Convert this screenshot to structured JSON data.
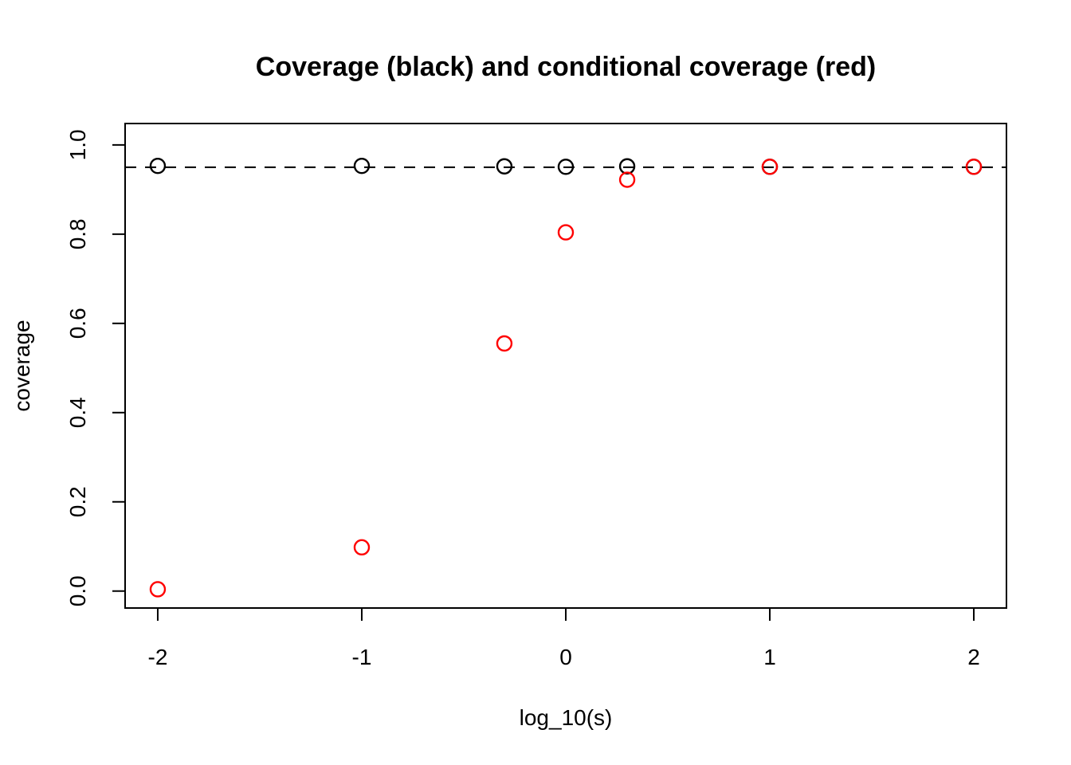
{
  "page": {
    "background": "#ffffff"
  },
  "chart_data": {
    "type": "scatter",
    "title": "Coverage (black) and conditional coverage (red)",
    "xlabel": "log_10(s)",
    "ylabel": "coverage",
    "x_ticks": [
      -2,
      -1,
      0,
      1,
      2
    ],
    "x_tick_labels": [
      "-2",
      "-1",
      "0",
      "1",
      "2"
    ],
    "y_ticks": [
      0.0,
      0.2,
      0.4,
      0.6,
      0.8,
      1.0
    ],
    "y_tick_labels": [
      "0.0",
      "0.2",
      "0.4",
      "0.6",
      "0.8",
      "1.0"
    ],
    "xlim": [
      -2.16,
      2.16
    ],
    "ylim": [
      -0.038,
      1.048
    ],
    "grid": false,
    "legend_position": "none",
    "marker": "open-circle",
    "reference_line": {
      "y": 0.95,
      "style": "dashed",
      "color": "#000000"
    },
    "x": [
      -2,
      -1,
      -0.301,
      0,
      0.301,
      1,
      2
    ],
    "series": [
      {
        "name": "coverage",
        "color": "#000000",
        "values": [
          0.953,
          0.953,
          0.952,
          0.951,
          0.952,
          0.951,
          0.951
        ]
      },
      {
        "name": "conditional coverage",
        "color": "#FF0000",
        "values": [
          0.004,
          0.098,
          0.555,
          0.804,
          0.922,
          0.951,
          0.951
        ]
      }
    ]
  }
}
